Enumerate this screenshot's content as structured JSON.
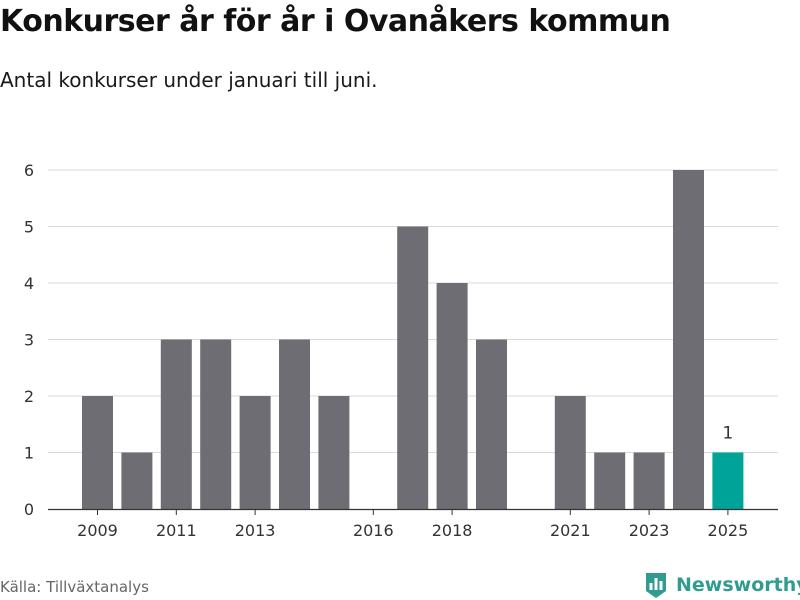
{
  "title": "Konkurser år för år i Ovanåkers kommun",
  "subtitle": "Antal konkurser under januari till juni.",
  "source": "Källa: Tillväxtanalys",
  "brand": {
    "name": "Newsworthy",
    "logo_icon": "chart-logo-icon"
  },
  "colors": {
    "bar": "#6e6d74",
    "highlight": "#00a398",
    "grid": "#d9d9d9",
    "axis": "#333333",
    "brand": "#2f9c8f"
  },
  "chart_data": {
    "type": "bar",
    "categories": [
      "2009",
      "2010",
      "2011",
      "2012",
      "2013",
      "2014",
      "2015",
      "2016",
      "2017",
      "2018",
      "2019",
      "2020",
      "2021",
      "2022",
      "2023",
      "2024",
      "2025"
    ],
    "values": [
      2,
      1,
      3,
      3,
      2,
      3,
      2,
      0,
      5,
      4,
      3,
      0,
      2,
      1,
      1,
      6,
      1
    ],
    "x_tick_labels": [
      "2009",
      "2011",
      "2013",
      "2016",
      "2018",
      "2021",
      "2023",
      "2025"
    ],
    "y_ticks": [
      0,
      1,
      2,
      3,
      4,
      5,
      6
    ],
    "ylim": [
      0,
      6
    ],
    "highlight_category": "2025",
    "data_labels": [
      {
        "category": "2025",
        "text": "1"
      }
    ],
    "grid": true,
    "legend": "none"
  }
}
